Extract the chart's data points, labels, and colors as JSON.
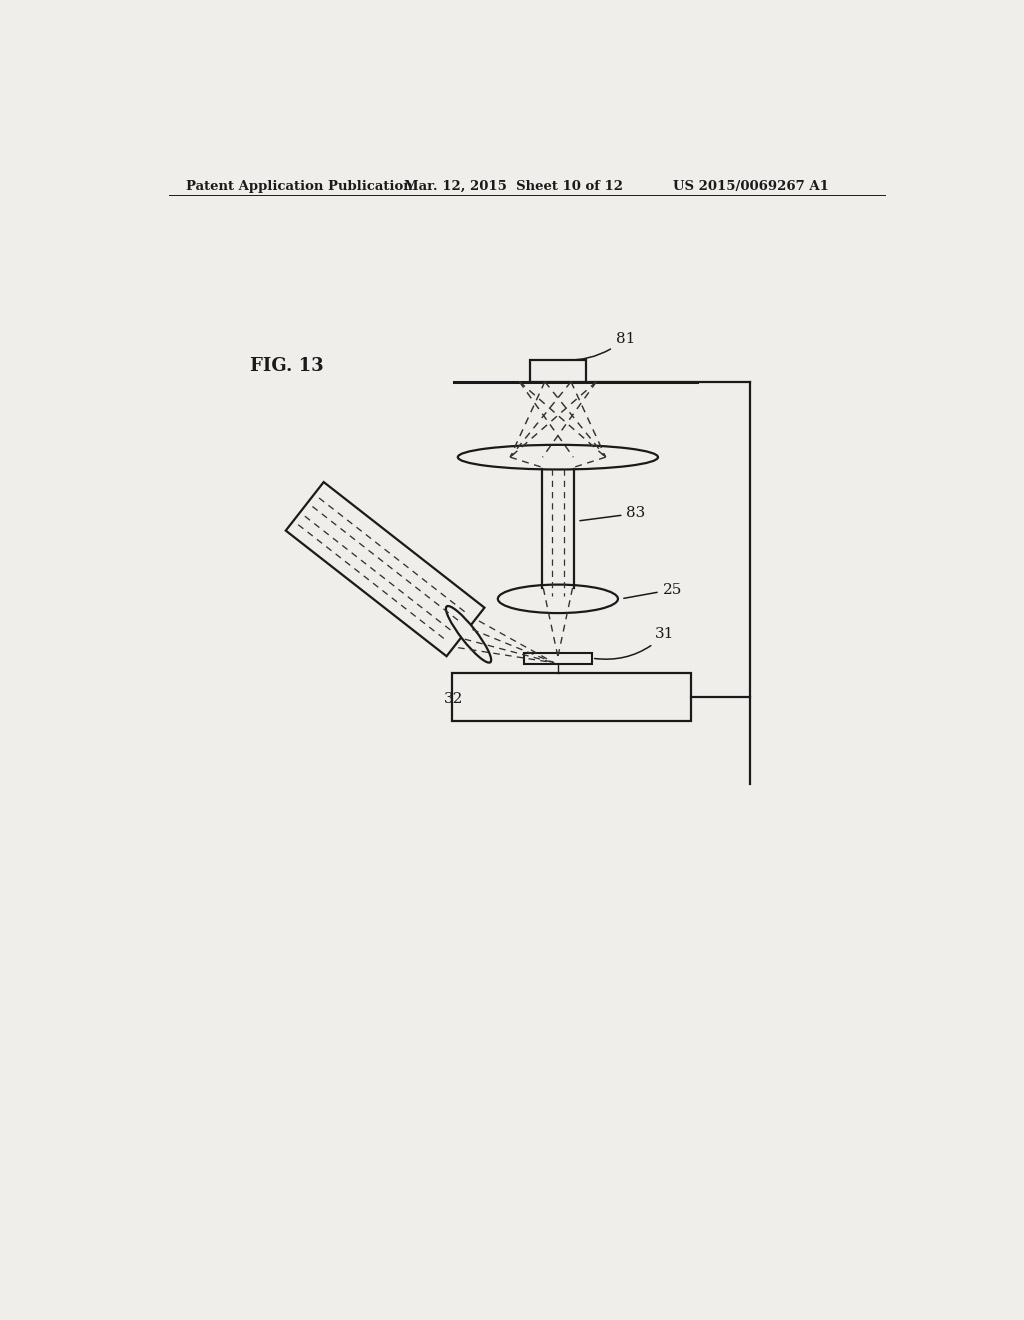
{
  "title_left": "Patent Application Publication",
  "title_mid": "Mar. 12, 2015  Sheet 10 of 12",
  "title_right": "US 2015/0069267 A1",
  "fig_label": "FIG. 13",
  "label_81": "81",
  "label_83": "83",
  "label_25": "25",
  "label_31": "31",
  "label_32": "32",
  "bg_color": "#f0eeeb",
  "line_color": "#1a1a1a",
  "dash_color": "#333333"
}
